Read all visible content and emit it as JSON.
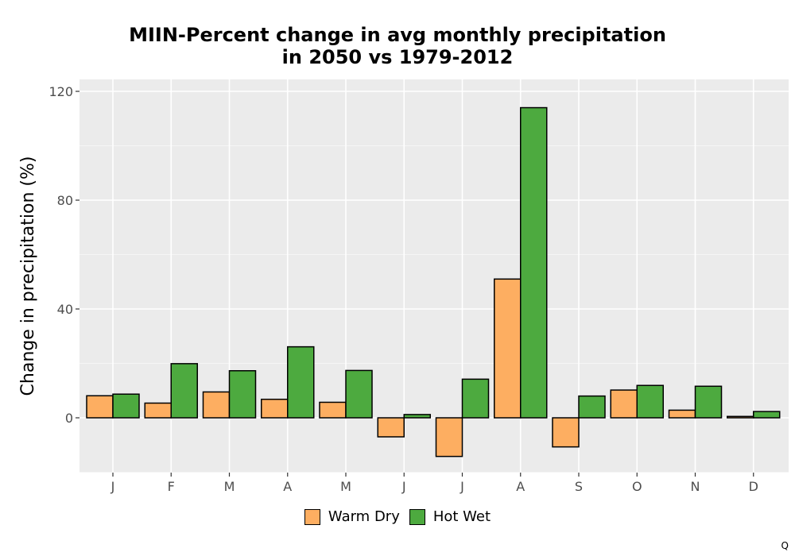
{
  "chart_data": {
    "type": "bar",
    "title_lines": [
      "MIIN-Percent change in avg monthly precipitation",
      "in 2050 vs 1979-2012"
    ],
    "xlabel": "",
    "ylabel": "Change in precipitation (%)",
    "categories": [
      "J",
      "F",
      "M",
      "A",
      "M",
      "J",
      "J",
      "A",
      "S",
      "O",
      "N",
      "D"
    ],
    "series": [
      {
        "name": "Warm Dry",
        "color": "#FDAE61",
        "values": [
          8.1,
          5.4,
          9.5,
          6.8,
          5.7,
          -7.0,
          -14.2,
          51.0,
          -10.7,
          10.2,
          2.8,
          0.5
        ]
      },
      {
        "name": "Hot Wet",
        "color": "#4DAA3F",
        "values": [
          8.7,
          19.9,
          17.3,
          26.1,
          17.4,
          1.2,
          14.2,
          114.0,
          8.0,
          11.9,
          11.6,
          2.3
        ]
      }
    ],
    "ylim": [
      -20,
      120
    ],
    "yticks": [
      0,
      40,
      80,
      120
    ],
    "grid": true,
    "panel_background": "#EBEBEB",
    "legend_position": "bottom"
  },
  "corner_mark": "Q"
}
